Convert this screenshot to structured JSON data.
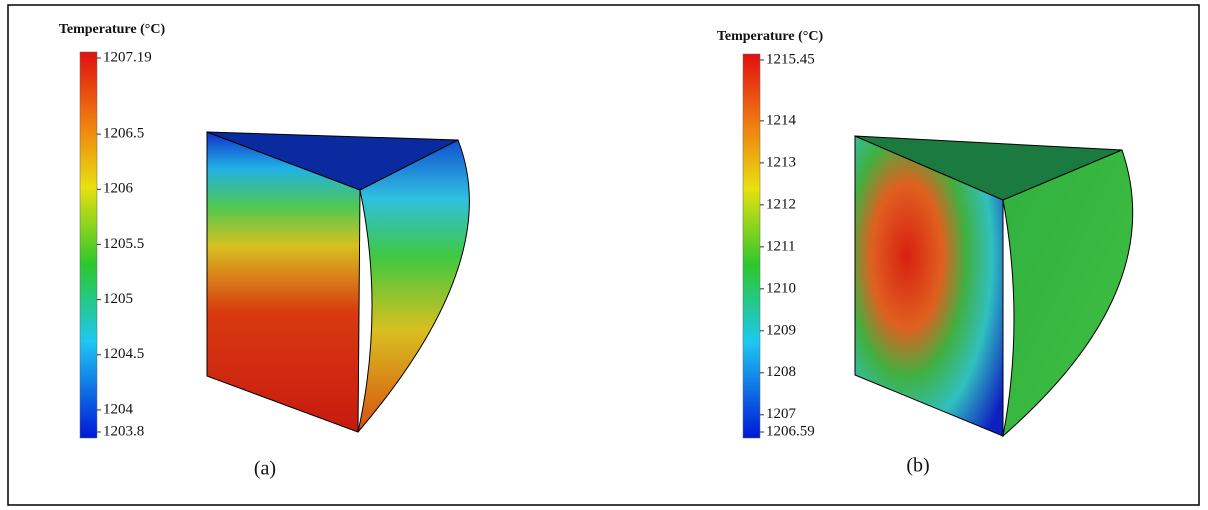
{
  "chart_data": [
    {
      "type": "colorbar",
      "title": "Temperature (°C)",
      "caption": "(a)",
      "ylim": [
        1203.8,
        1207.19
      ],
      "yticks": [
        1203.8,
        1204,
        1204.5,
        1205,
        1205.5,
        1206,
        1206.5,
        1207.19
      ]
    },
    {
      "type": "colorbar",
      "title": "Temperature (°C)",
      "caption": "(b)",
      "ylim": [
        1206.59,
        1215.45
      ],
      "yticks": [
        1206.59,
        1207,
        1208,
        1209,
        1210,
        1211,
        1212,
        1213,
        1214,
        1215.45
      ]
    }
  ]
}
